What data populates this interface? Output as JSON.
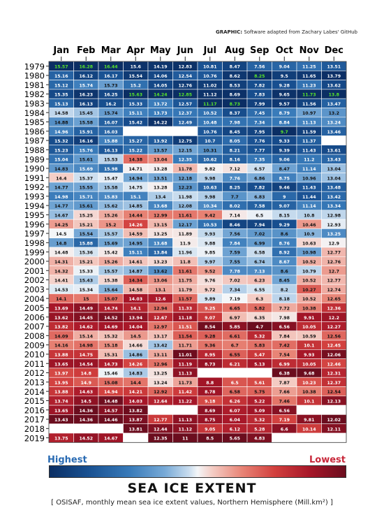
{
  "credit": {
    "bold": "GRAPHIC:",
    "rest": "Software adapted from Zachary Labes' GitHub"
  },
  "legend": {
    "high": "Highest",
    "low": "Lowest"
  },
  "title": "SEA ICE EXTENT",
  "subtitle": "[ OSISAF, monthly mean sea ice extent values, Northern Hemisphere (Mill.km²) ]",
  "colors": {
    "high_end": "#0b2e64",
    "mid": "#f4f6f8",
    "low_end": "#6b0d1e",
    "highlight_text": "#5ae62a",
    "missing": "#a91a2c"
  },
  "chart_data": {
    "type": "heatmap",
    "months": [
      "Jan",
      "Feb",
      "Mar",
      "Apr",
      "May",
      "Jun",
      "Jul",
      "Aug",
      "Sep",
      "Oct",
      "Nov",
      "Dec"
    ],
    "years": [
      "1979",
      "1980",
      "1981",
      "1982",
      "1983",
      "1984",
      "1985",
      "1986",
      "1987",
      "1988",
      "1989",
      "1990",
      "1991",
      "1992",
      "1993",
      "1994",
      "1995",
      "1996",
      "1997",
      "1998",
      "1999",
      "2000",
      "2001",
      "2002",
      "2003",
      "2004",
      "2005",
      "2006",
      "2007",
      "2008",
      "2009",
      "2010",
      "2011",
      "2012",
      "2013",
      "2014",
      "2015",
      "2016",
      "2017",
      "2018",
      "2019"
    ],
    "highlight_note": "green text marks the highest value per month",
    "values": [
      [
        15.57,
        16.28,
        16.44,
        15.6,
        14.19,
        12.83,
        10.81,
        8.47,
        7.56,
        9.04,
        11.25,
        13.51
      ],
      [
        15.16,
        16.12,
        16.17,
        15.54,
        14.06,
        12.54,
        10.76,
        8.62,
        8.25,
        9.5,
        11.65,
        13.79
      ],
      [
        15.12,
        15.74,
        15.73,
        15.2,
        14.05,
        12.76,
        11.02,
        8.53,
        7.82,
        9.28,
        11.23,
        13.62
      ],
      [
        15.35,
        16.23,
        16.25,
        15.63,
        14.24,
        12.85,
        11.12,
        8.69,
        7.83,
        9.65,
        11.73,
        13.8
      ],
      [
        15.13,
        16.13,
        16.2,
        15.33,
        13.72,
        12.57,
        11.17,
        8.73,
        7.99,
        9.57,
        11.56,
        13.47
      ],
      [
        14.58,
        15.45,
        15.74,
        15.11,
        13.73,
        12.37,
        10.52,
        8.37,
        7.45,
        8.79,
        10.97,
        13.2
      ],
      [
        14.88,
        15.58,
        16.07,
        15.42,
        14.22,
        12.49,
        10.48,
        7.98,
        7.34,
        8.84,
        11.13,
        13.24
      ],
      [
        14.96,
        15.91,
        16.03,
        null,
        null,
        null,
        10.76,
        8.45,
        7.95,
        9.7,
        11.59,
        13.46
      ],
      [
        15.32,
        16.16,
        15.88,
        15.27,
        13.92,
        12.75,
        10.7,
        8.05,
        7.76,
        9.33,
        11.37,
        null
      ],
      [
        15.23,
        15.76,
        16.13,
        15.22,
        13.57,
        12.15,
        10.31,
        8.21,
        7.77,
        9.39,
        11.43,
        13.61
      ],
      [
        15.04,
        15.61,
        15.53,
        14.38,
        13.04,
        12.35,
        10.62,
        8.16,
        7.35,
        9.06,
        11.2,
        13.43
      ],
      [
        14.83,
        15.69,
        15.98,
        14.71,
        13.28,
        11.78,
        9.82,
        7.12,
        6.57,
        8.47,
        11.14,
        13.04
      ],
      [
        14.4,
        15.37,
        15.47,
        14.94,
        13.51,
        12.18,
        9.98,
        7.76,
        6.86,
        8.75,
        10.96,
        13.04
      ],
      [
        14.77,
        15.55,
        15.58,
        14.75,
        13.28,
        12.23,
        10.63,
        8.25,
        7.82,
        9.46,
        11.43,
        13.48
      ],
      [
        14.98,
        15.71,
        15.83,
        15.1,
        13.4,
        11.98,
        9.98,
        7.7,
        6.83,
        9.0,
        11.44,
        13.42
      ],
      [
        14.77,
        15.61,
        15.62,
        14.85,
        13.68,
        12.08,
        10.34,
        8.02,
        7.58,
        9.07,
        11.14,
        13.34
      ],
      [
        14.67,
        15.25,
        15.26,
        14.44,
        12.99,
        11.61,
        9.42,
        7.14,
        6.5,
        8.15,
        10.8,
        12.98
      ],
      [
        14.25,
        15.21,
        15.2,
        14.26,
        13.15,
        12.17,
        10.53,
        8.46,
        7.94,
        9.29,
        10.46,
        12.93
      ],
      [
        14.5,
        15.54,
        15.57,
        14.59,
        13.25,
        11.89,
        9.93,
        7.56,
        7.02,
        8.6,
        10.9,
        13.25
      ],
      [
        14.8,
        15.88,
        15.69,
        14.95,
        13.68,
        11.9,
        9.88,
        7.84,
        6.99,
        8.76,
        10.63,
        12.9
      ],
      [
        14.48,
        15.36,
        15.42,
        15.11,
        13.84,
        11.96,
        9.85,
        7.59,
        6.58,
        8.92,
        10.98,
        12.77
      ],
      [
        14.31,
        15.21,
        15.26,
        14.61,
        13.23,
        11.8,
        9.97,
        7.55,
        6.74,
        8.67,
        10.52,
        12.76
      ],
      [
        14.32,
        15.33,
        15.57,
        14.87,
        13.62,
        11.61,
        9.52,
        7.78,
        7.13,
        8.6,
        10.79,
        12.7
      ],
      [
        14.41,
        15.43,
        15.38,
        14.34,
        13.06,
        11.75,
        9.76,
        7.02,
        6.23,
        8.45,
        10.52,
        12.77
      ],
      [
        14.53,
        15.34,
        15.64,
        14.58,
        13.1,
        11.79,
        9.72,
        7.34,
        6.55,
        8.2,
        10.27,
        12.74
      ],
      [
        14.1,
        15.0,
        15.07,
        14.03,
        12.6,
        11.57,
        9.89,
        7.19,
        6.3,
        8.18,
        10.52,
        12.65
      ],
      [
        13.69,
        14.49,
        14.74,
        14.1,
        12.94,
        11.33,
        9.25,
        6.65,
        5.82,
        7.72,
        10.38,
        12.36
      ],
      [
        13.62,
        14.45,
        14.52,
        13.94,
        12.67,
        11.18,
        9.07,
        6.97,
        6.35,
        7.98,
        9.91,
        12.2
      ],
      [
        13.82,
        14.62,
        14.69,
        14.04,
        12.97,
        11.51,
        8.54,
        5.85,
        4.7,
        6.56,
        10.05,
        12.27
      ],
      [
        14.09,
        15.14,
        15.32,
        14.5,
        13.17,
        11.54,
        9.28,
        6.61,
        5.32,
        7.84,
        10.59,
        12.56
      ],
      [
        14.16,
        14.98,
        15.18,
        14.66,
        13.42,
        11.71,
        9.36,
        6.7,
        5.83,
        7.42,
        10.1,
        12.45
      ],
      [
        13.88,
        14.75,
        15.31,
        14.86,
        13.11,
        11.01,
        8.95,
        6.55,
        5.47,
        7.54,
        9.93,
        12.06
      ],
      [
        13.65,
        14.54,
        14.73,
        14.26,
        12.96,
        11.19,
        8.73,
        6.21,
        5.13,
        6.99,
        10.05,
        12.46
      ],
      [
        13.97,
        14.8,
        15.46,
        14.83,
        13.25,
        11.13,
        null,
        null,
        null,
        6.38,
        9.68,
        12.31
      ],
      [
        13.95,
        14.9,
        15.08,
        14.4,
        13.24,
        11.73,
        8.8,
        6.5,
        5.61,
        7.87,
        10.23,
        12.37
      ],
      [
        13.88,
        14.63,
        14.94,
        14.21,
        12.92,
        11.42,
        8.78,
        6.58,
        5.75,
        7.66,
        10.38,
        12.54
      ],
      [
        13.74,
        14.5,
        14.48,
        14.03,
        12.64,
        11.22,
        9.18,
        6.26,
        5.22,
        7.46,
        10.1,
        12.13
      ],
      [
        13.65,
        14.36,
        14.57,
        13.82,
        null,
        null,
        8.69,
        6.07,
        5.09,
        6.56,
        null,
        null
      ],
      [
        13.43,
        14.36,
        14.46,
        13.87,
        12.77,
        11.13,
        8.75,
        6.04,
        5.32,
        7.19,
        9.81,
        12.02
      ],
      [
        null,
        null,
        null,
        13.81,
        12.44,
        11.12,
        9.05,
        6.12,
        5.28,
        6.6,
        10.14,
        12.11
      ],
      [
        13.75,
        14.52,
        14.67,
        null,
        12.35,
        11.0,
        8.5,
        5.65,
        4.83,
        null,
        null,
        null
      ]
    ]
  }
}
